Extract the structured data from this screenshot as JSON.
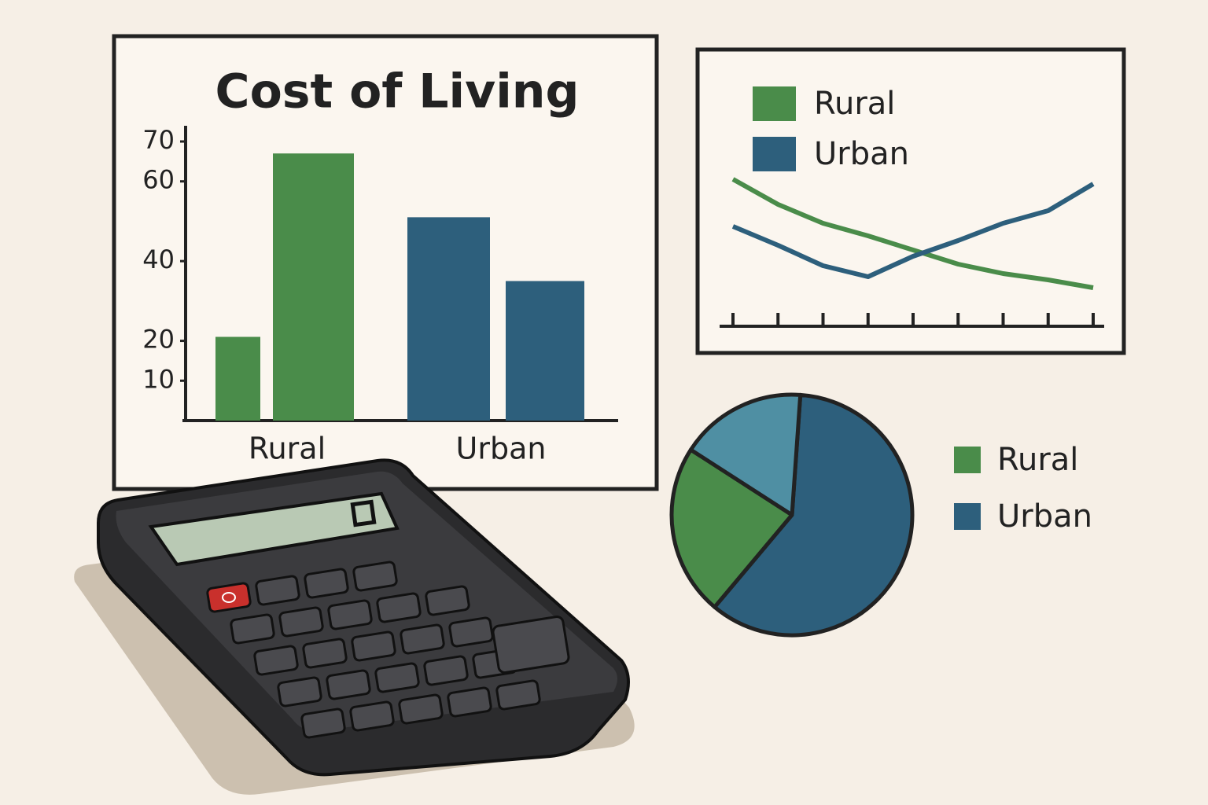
{
  "chart_data": [
    {
      "type": "bar",
      "title": "Cost of Living",
      "groups": [
        {
          "label": "Rural",
          "color": "#4a8c4a",
          "values": [
            21,
            67
          ]
        },
        {
          "label": "Urban",
          "color": "#2d5f7c",
          "values": [
            51,
            35
          ]
        }
      ],
      "ylim": [
        0,
        70
      ],
      "yticks": [
        10,
        20,
        40,
        60,
        70
      ]
    },
    {
      "type": "line",
      "categories": [
        null,
        null,
        null,
        null,
        null,
        null,
        null,
        null,
        null
      ],
      "ylim": [
        0,
        100
      ],
      "series": [
        {
          "name": "Rural",
          "color": "#4a8c4a",
          "values": [
            86,
            70,
            58,
            50,
            41,
            32,
            26,
            22,
            17
          ]
        },
        {
          "name": "Urban",
          "color": "#2d5f7c",
          "values": [
            56,
            44,
            31,
            24,
            37,
            47,
            58,
            66,
            83
          ]
        }
      ]
    },
    {
      "type": "pie",
      "labels": [
        "Urban",
        "Rural",
        null
      ],
      "values": [
        60,
        23,
        17
      ],
      "colors": [
        "#2d5f7c",
        "#4a8c4a",
        "#4f8fa3"
      ]
    }
  ]
}
